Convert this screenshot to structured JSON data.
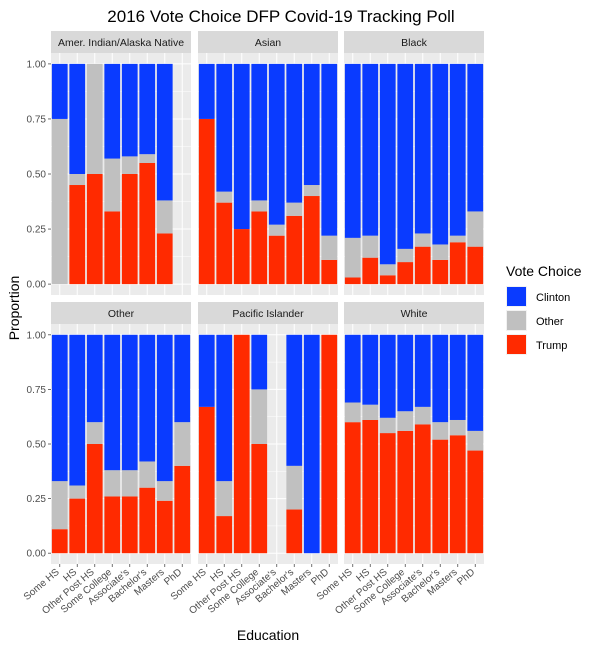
{
  "chart_data": {
    "type": "bar",
    "stacked": true,
    "title": "2016 Vote Choice DFP Covid-19 Tracking Poll",
    "xlabel": "Education",
    "ylabel": "Proportion",
    "ylim": [
      0,
      1
    ],
    "yticks": [
      "0.00",
      "0.25",
      "0.50",
      "0.75",
      "1.00"
    ],
    "categories": [
      "Some HS",
      "HS",
      "Other Post HS",
      "Some College",
      "Associate's",
      "Bachelor's",
      "Masters",
      "PhD"
    ],
    "legend": {
      "title": "Vote Choice",
      "placement": "right",
      "entries": [
        {
          "name": "Clinton",
          "color": "#0a3bff"
        },
        {
          "name": "Other",
          "color": "#c0c0c0"
        },
        {
          "name": "Trump",
          "color": "#ff2a00"
        }
      ]
    },
    "panel_background": "#ebebeb",
    "strip_background": "#d9d9d9",
    "grid": true,
    "panels": [
      {
        "name": "Amer. Indian/Alaska Native",
        "series": [
          {
            "name": "Trump",
            "values": [
              0,
              0.45,
              0.5,
              0.33,
              0.5,
              0.55,
              0.23,
              null
            ]
          },
          {
            "name": "Other",
            "values": [
              0.75,
              0.05,
              0.5,
              0.24,
              0.08,
              0.04,
              0.15,
              null
            ]
          },
          {
            "name": "Clinton",
            "values": [
              0.25,
              0.5,
              0,
              0.43,
              0.42,
              0.41,
              0.62,
              null
            ]
          }
        ]
      },
      {
        "name": "Asian",
        "series": [
          {
            "name": "Trump",
            "values": [
              0.75,
              0.37,
              0.25,
              0.33,
              0.22,
              0.31,
              0.4,
              0.11
            ]
          },
          {
            "name": "Other",
            "values": [
              0,
              0.05,
              0,
              0.05,
              0.05,
              0.06,
              0.05,
              0.11
            ]
          },
          {
            "name": "Clinton",
            "values": [
              0.25,
              0.58,
              0.75,
              0.62,
              0.73,
              0.63,
              0.55,
              0.78
            ]
          }
        ]
      },
      {
        "name": "Black",
        "series": [
          {
            "name": "Trump",
            "values": [
              0.03,
              0.12,
              0.04,
              0.1,
              0.17,
              0.11,
              0.19,
              0.17
            ]
          },
          {
            "name": "Other",
            "values": [
              0.18,
              0.1,
              0.05,
              0.06,
              0.06,
              0.07,
              0.03,
              0.16
            ]
          },
          {
            "name": "Clinton",
            "values": [
              0.79,
              0.78,
              0.91,
              0.84,
              0.77,
              0.82,
              0.78,
              0.67
            ]
          }
        ]
      },
      {
        "name": "Other",
        "series": [
          {
            "name": "Trump",
            "values": [
              0.11,
              0.25,
              0.5,
              0.26,
              0.26,
              0.3,
              0.24,
              0.4
            ]
          },
          {
            "name": "Other",
            "values": [
              0.22,
              0.06,
              0.1,
              0.12,
              0.12,
              0.12,
              0.09,
              0.2
            ]
          },
          {
            "name": "Clinton",
            "values": [
              0.67,
              0.69,
              0.4,
              0.62,
              0.62,
              0.58,
              0.67,
              0.4
            ]
          }
        ]
      },
      {
        "name": "Pacific Islander",
        "series": [
          {
            "name": "Trump",
            "values": [
              0.67,
              0.17,
              1.0,
              0.5,
              null,
              0.2,
              0,
              1.0
            ]
          },
          {
            "name": "Other",
            "values": [
              0,
              0.16,
              0,
              0.25,
              null,
              0.2,
              0,
              0
            ]
          },
          {
            "name": "Clinton",
            "values": [
              0.33,
              0.67,
              0,
              0.25,
              null,
              0.6,
              1.0,
              0
            ]
          }
        ]
      },
      {
        "name": "White",
        "series": [
          {
            "name": "Trump",
            "values": [
              0.6,
              0.61,
              0.55,
              0.56,
              0.59,
              0.52,
              0.54,
              0.47
            ]
          },
          {
            "name": "Other",
            "values": [
              0.09,
              0.07,
              0.07,
              0.09,
              0.08,
              0.08,
              0.07,
              0.09
            ]
          },
          {
            "name": "Clinton",
            "values": [
              0.31,
              0.32,
              0.38,
              0.35,
              0.33,
              0.4,
              0.39,
              0.44
            ]
          }
        ]
      }
    ]
  }
}
